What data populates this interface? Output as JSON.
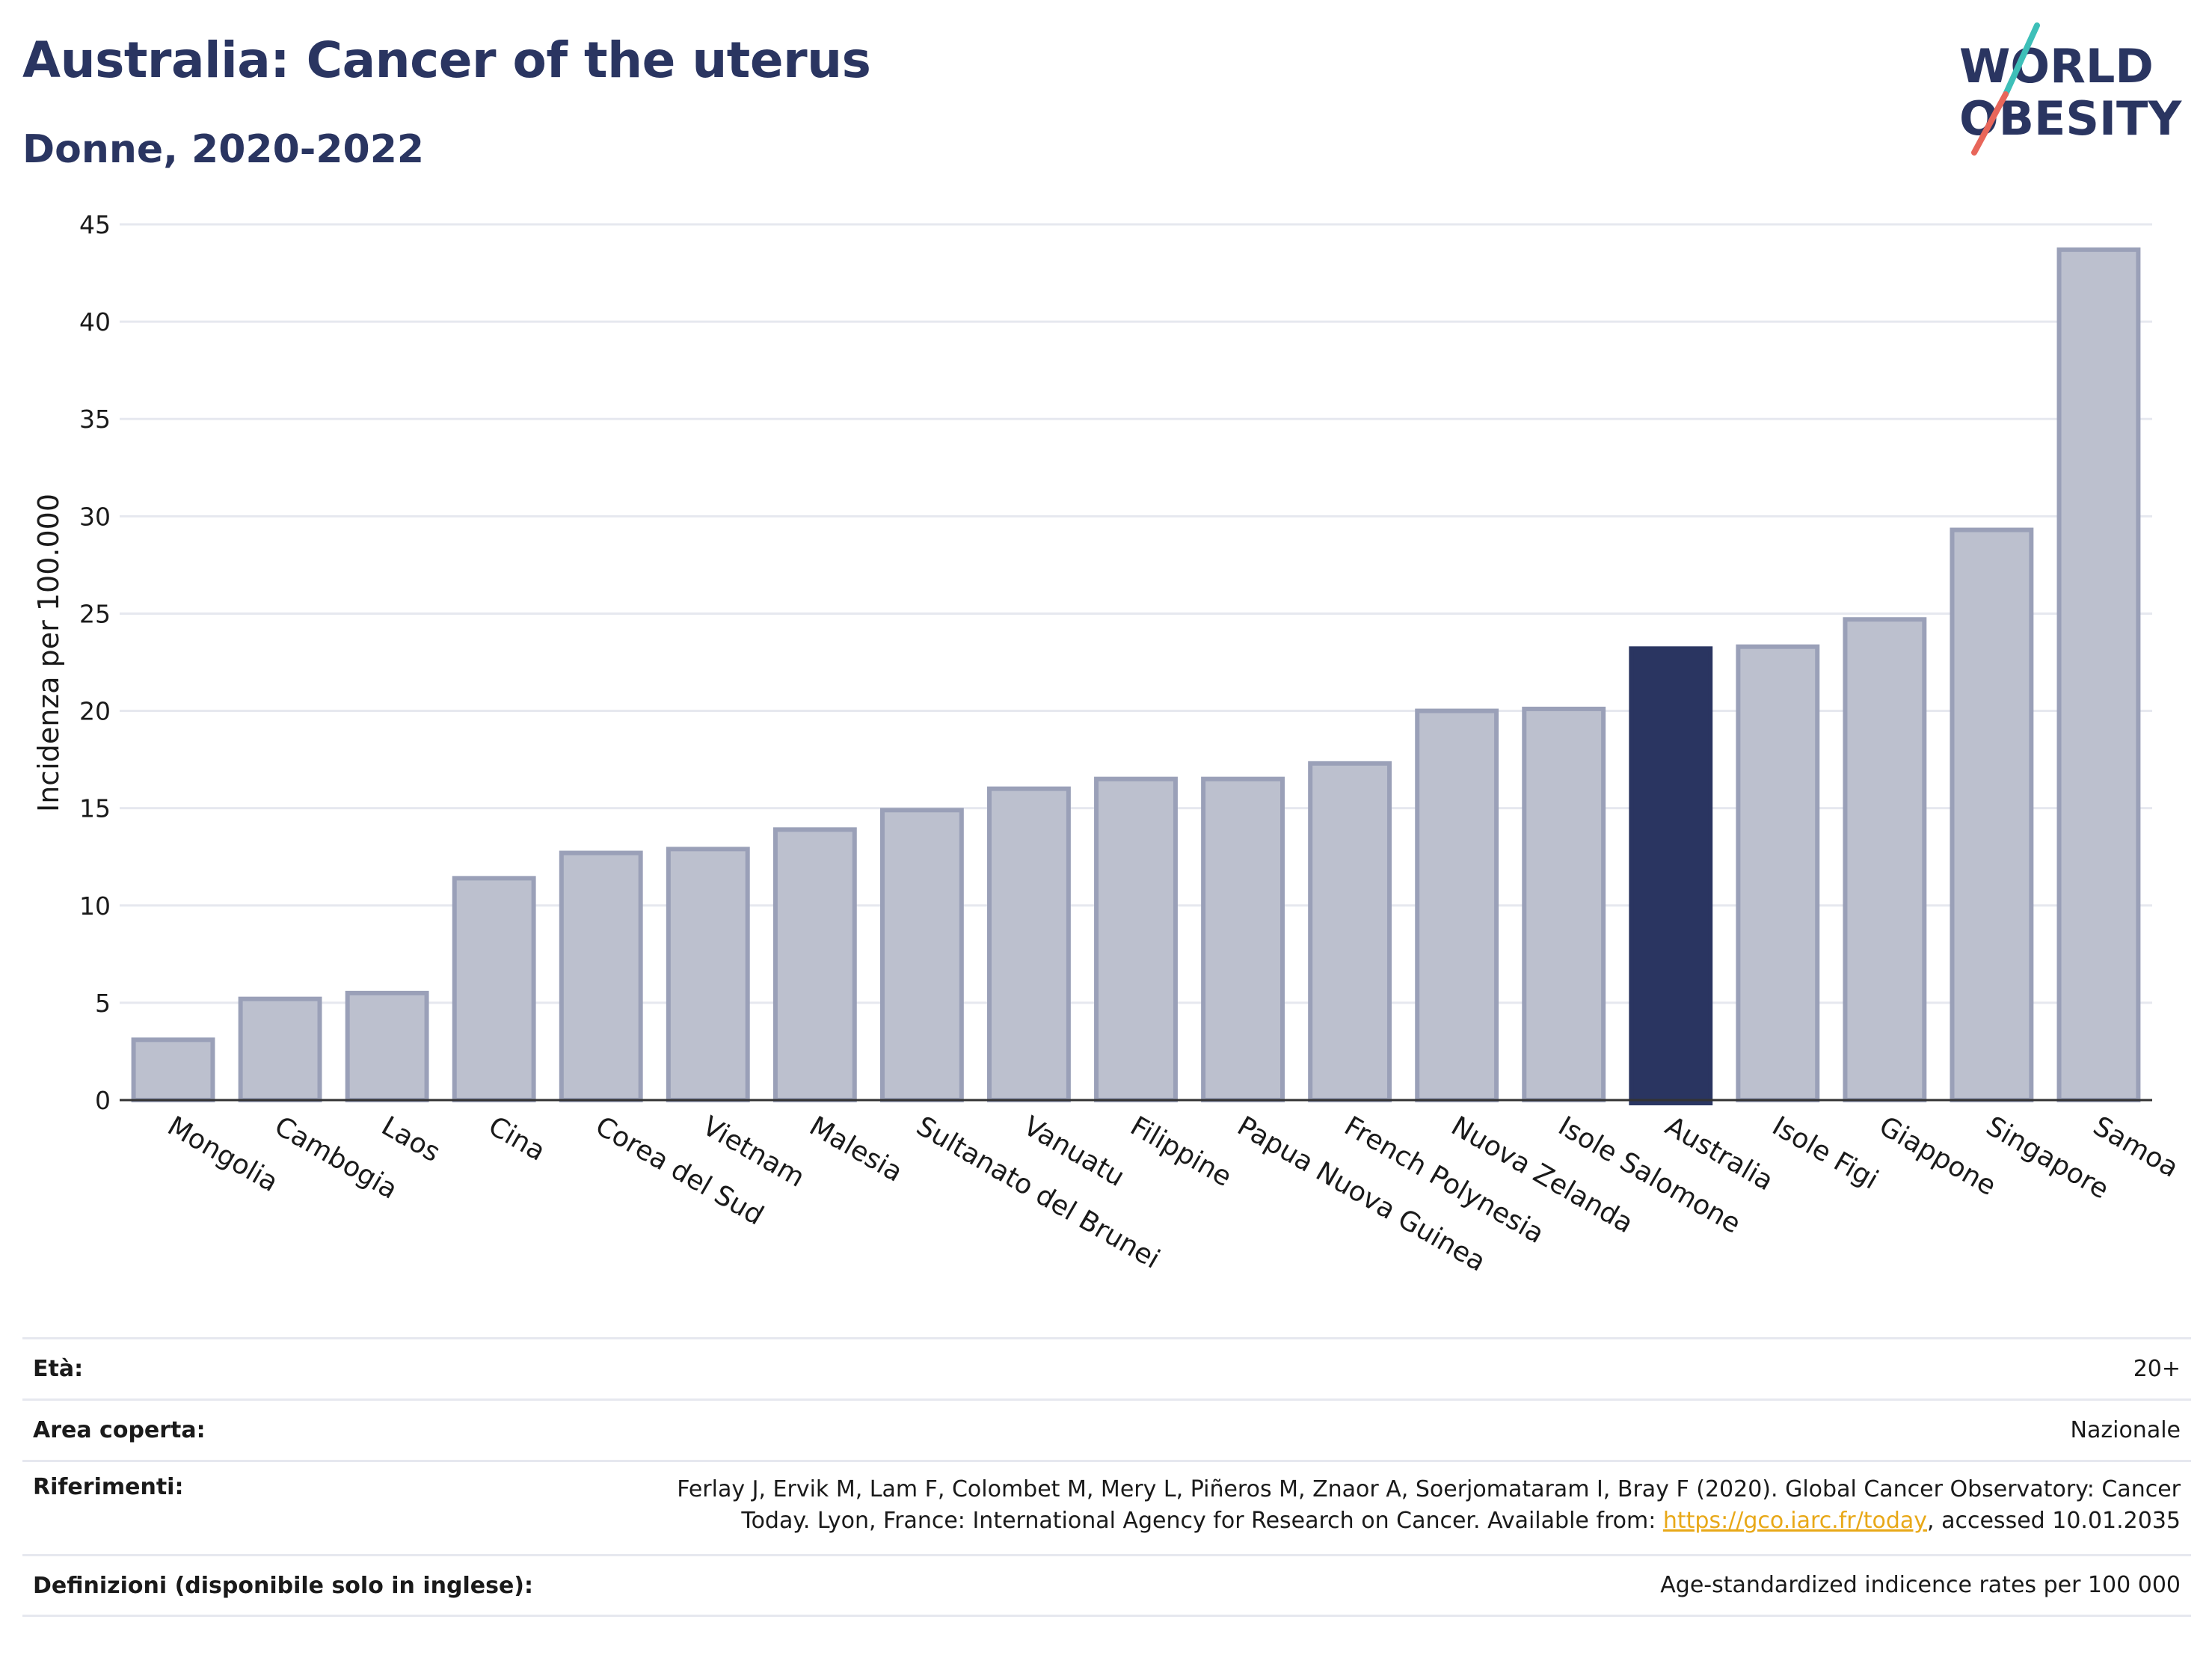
{
  "header": {
    "title": "Australia: Cancer of the uterus",
    "subtitle": "Donne, 2020-2022"
  },
  "logo": {
    "line1": "WORLD",
    "line2": "OBESITY",
    "slash_colors": [
      "#3dbfb8",
      "#e8665a"
    ],
    "text_color": "#2a3561"
  },
  "colors": {
    "highlight": "#2a3561",
    "bar_fill": "#bcc0ce",
    "bar_stroke": "#9aa0b8",
    "grid": "#e6e8ef"
  },
  "chart_data": {
    "type": "bar",
    "title": "Australia: Cancer of the uterus",
    "subtitle": "Donne, 2020-2022",
    "ylabel": "Incidenza per 100.000",
    "xlabel": "",
    "ylim": [
      0,
      45
    ],
    "yticks": [
      0,
      5,
      10,
      15,
      20,
      25,
      30,
      35,
      40,
      45
    ],
    "grid": true,
    "highlight": "Australia",
    "categories": [
      "Mongolia",
      "Cambogia",
      "Laos",
      "Cina",
      "Corea del Sud",
      "Vietnam",
      "Malesia",
      "Sultanato del Brunei",
      "Vanuatu",
      "Filippine",
      "Papua Nuova Guinea",
      "French Polynesia",
      "Nuova Zelanda",
      "Isole Salomone",
      "Australia",
      "Isole Figi",
      "Giappone",
      "Singapore",
      "Samoa"
    ],
    "values": [
      3.1,
      5.2,
      5.5,
      11.4,
      12.7,
      12.9,
      13.9,
      14.9,
      16.0,
      16.5,
      16.5,
      17.3,
      20.0,
      20.1,
      23.2,
      23.3,
      24.7,
      29.3,
      43.7
    ]
  },
  "info": {
    "age_label": "Età:",
    "age_value": "20+",
    "area_label": "Area coperta:",
    "area_value": "Nazionale",
    "refs_label": "Riferimenti:",
    "refs_line1": "Ferlay J, Ervik M, Lam F, Colombet M, Mery L, Piñeros M, Znaor A, Soerjomataram I, Bray F (2020). Global Cancer Observatory: Cancer",
    "refs_line2_pre": "Today. Lyon, France: International Agency for Research on Cancer. Available from: ",
    "refs_link": "https://gco.iarc.fr/today",
    "refs_line2_post": ", accessed 10.01.2035",
    "defs_label": "Definizioni (disponibile solo in inglese):",
    "defs_value": "Age-standardized indicence rates per 100 000"
  }
}
